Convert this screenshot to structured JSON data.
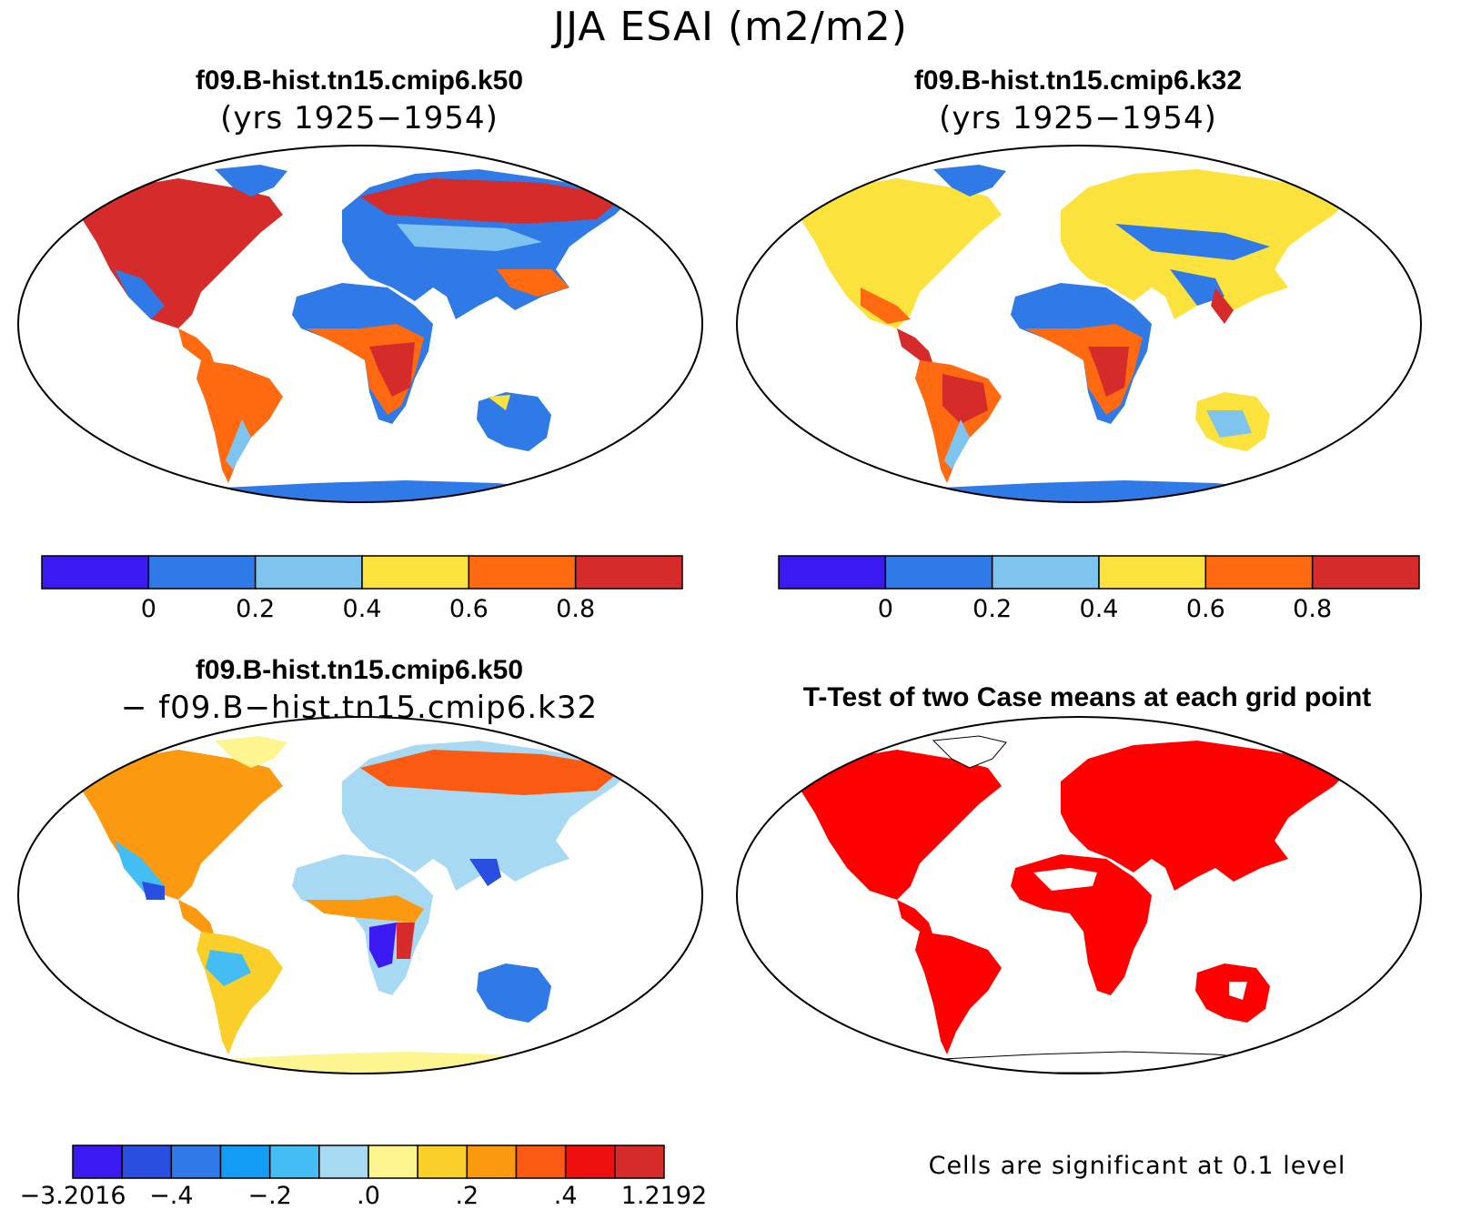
{
  "title": "JJA ESAI (m2/m2)",
  "panels": [
    {
      "title": "f09.B-hist.tn15.cmip6.k50",
      "subtitle": "(yrs 1925−1954)"
    },
    {
      "title": "f09.B-hist.tn15.cmip6.k32",
      "subtitle": "(yrs 1925−1954)"
    },
    {
      "title": "f09.B-hist.tn15.cmip6.k50",
      "subtitle": "− f09.B−hist.tn15.cmip6.k32"
    },
    {
      "title": "T-Test of two Case means at each grid point",
      "subtitle": ""
    }
  ],
  "colorbar_main": {
    "colors": [
      "#3a1af0",
      "#2f7ae6",
      "#7fc4ee",
      "#fbe23c",
      "#ff6a10",
      "#d52b2b"
    ],
    "ticks": [
      "0",
      "0.2",
      "0.4",
      "0.6",
      "0.8"
    ]
  },
  "colorbar_diff": {
    "colors": [
      "#3a1af0",
      "#2a4fe0",
      "#2f7ae6",
      "#139cf3",
      "#43bdf3",
      "#a8d9f3",
      "#fcf590",
      "#fbcf2a",
      "#fb9a10",
      "#fb5a12",
      "#ee0f0f",
      "#d52b2b"
    ],
    "ticks": [
      "−3.2016",
      "−.4",
      "−.2",
      ".0",
      ".2",
      ".4",
      "1.2192"
    ]
  },
  "significance_note": "Cells are significant at 0.1 level",
  "map_colors": {
    "ocean": "#ffffff",
    "significant": "#ff0000",
    "outline": "#000000"
  }
}
